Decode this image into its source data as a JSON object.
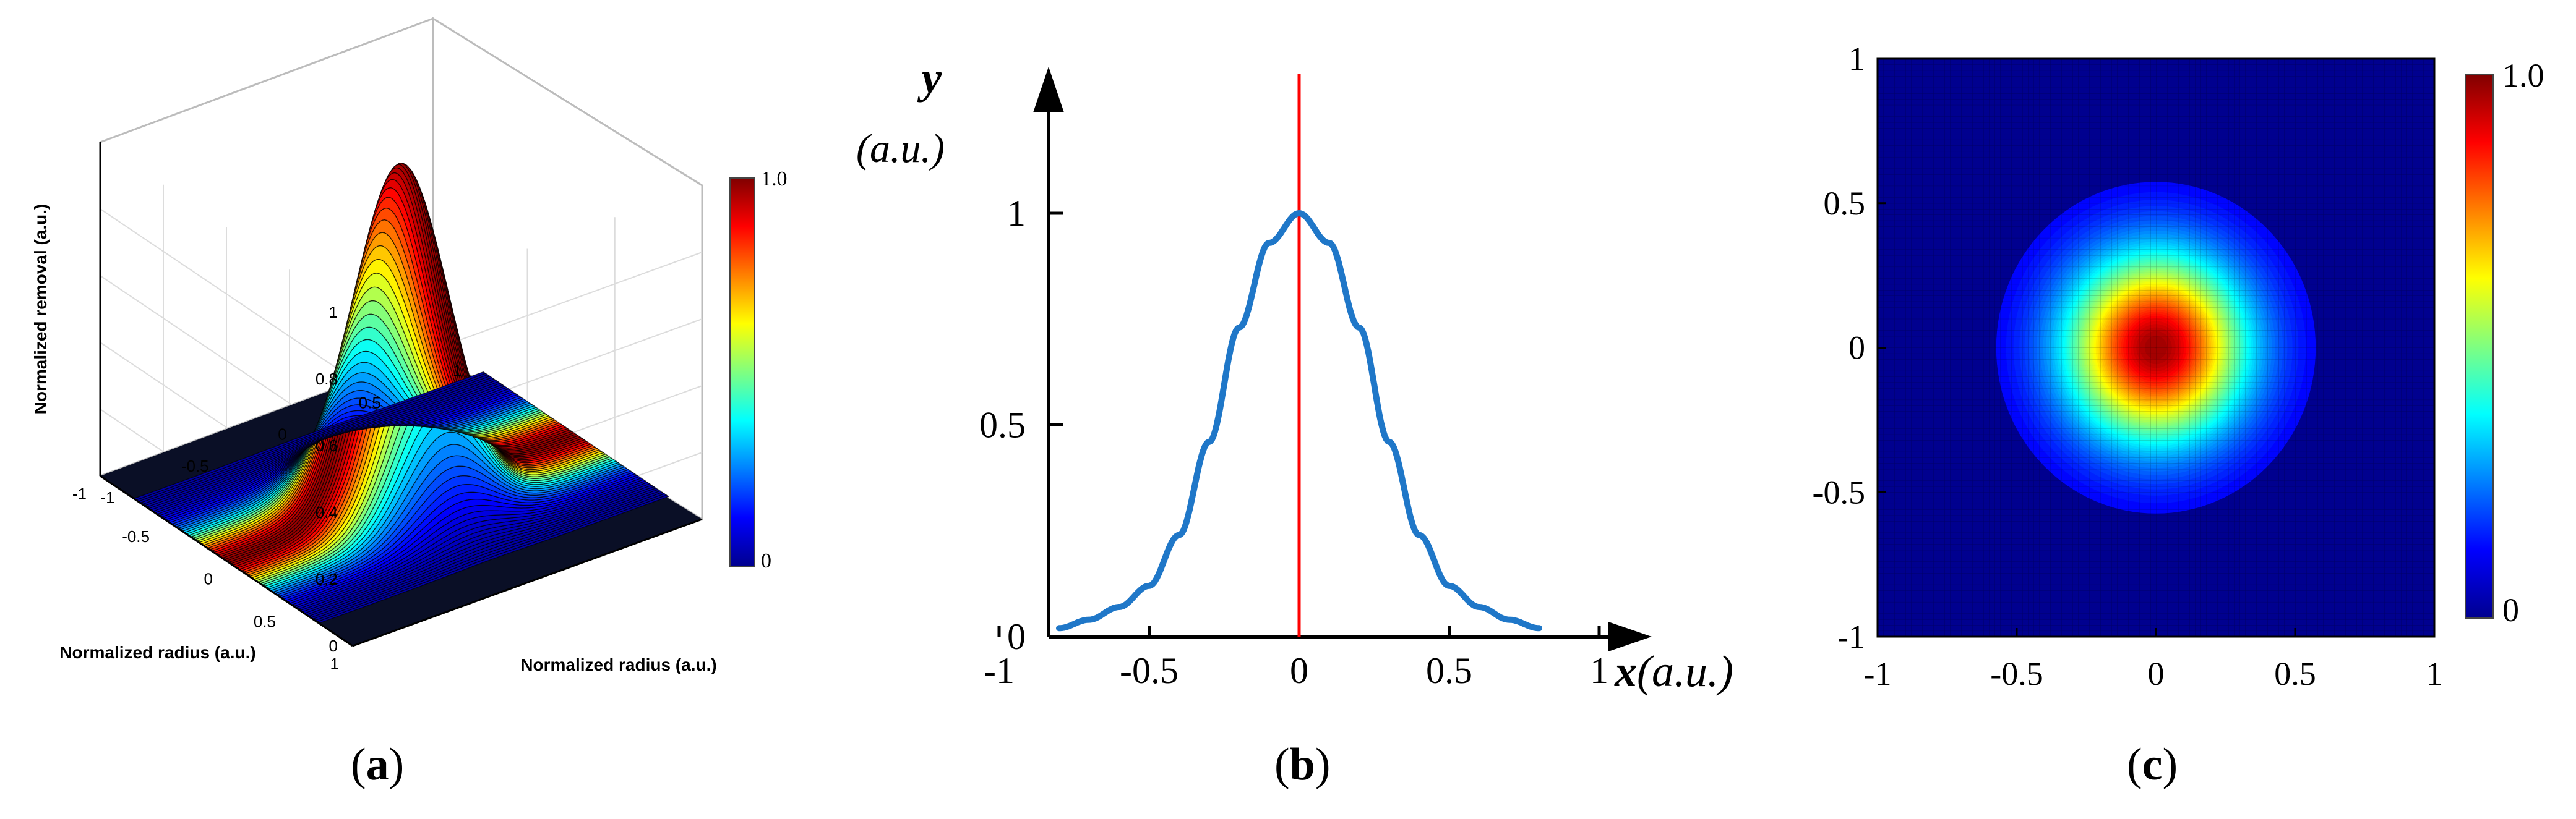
{
  "chart_data": [
    {
      "type": "surface",
      "panel_label": "a",
      "zlabel": "Normalized removal (a.u.)",
      "xlabel": "Normalized radius (a.u.)",
      "ylabel": "Normalized radius (a.u.)",
      "zlim": [
        0,
        1
      ],
      "xlim": [
        -1,
        1
      ],
      "ylim": [
        -1,
        1
      ],
      "z_ticks": [
        "0",
        "0.2",
        "0.4",
        "0.6",
        "0.8",
        "1"
      ],
      "x_ticks": [
        "-1",
        "-0.5",
        "0",
        "0.5",
        "1"
      ],
      "y_ticks": [
        "1",
        "0.5",
        "0",
        "-0.5",
        "-1"
      ],
      "colorbar": {
        "min_label": "0",
        "max_label": "1.0",
        "colormap": "jet"
      },
      "function": "gaussian",
      "peak": 1.0,
      "sigma": 0.22,
      "grid": true
    },
    {
      "type": "line",
      "panel_label": "b",
      "xlabel": "x(a.u.)",
      "ylabel": "y (a.u.)",
      "xlim": [
        -1,
        1
      ],
      "ylim": [
        0,
        1
      ],
      "x_ticks": [
        "-1",
        "-0.5",
        "0",
        "0.5",
        "1"
      ],
      "y_ticks": [
        "0",
        "0.5",
        "1"
      ],
      "series": [
        {
          "color": "#1f77c8",
          "x": [
            -0.8,
            -0.7,
            -0.6,
            -0.5,
            -0.4,
            -0.3,
            -0.2,
            -0.1,
            0,
            0.1,
            0.2,
            0.3,
            0.4,
            0.5,
            0.6,
            0.7,
            0.8
          ],
          "y": [
            0.02,
            0.04,
            0.07,
            0.12,
            0.24,
            0.46,
            0.73,
            0.93,
            1.0,
            0.93,
            0.73,
            0.46,
            0.24,
            0.12,
            0.07,
            0.04,
            0.02
          ]
        }
      ],
      "reference_line": {
        "x": 0,
        "color": "#ff0000"
      }
    },
    {
      "type": "heatmap",
      "panel_label": "c",
      "xlim": [
        -1,
        1
      ],
      "ylim": [
        -1,
        1
      ],
      "x_ticks": [
        "-1",
        "-0.5",
        "0",
        "0.5",
        "1"
      ],
      "y_ticks": [
        "-1",
        "-0.5",
        "0",
        "0.5",
        "1"
      ],
      "colorbar": {
        "min_label": "0",
        "max_label": "1.0",
        "colormap": "jet"
      },
      "function": "gaussian",
      "peak": 1.0,
      "sigma": 0.22,
      "grid_cells": 100
    }
  ],
  "captions": [
    "a",
    "b",
    "c"
  ]
}
